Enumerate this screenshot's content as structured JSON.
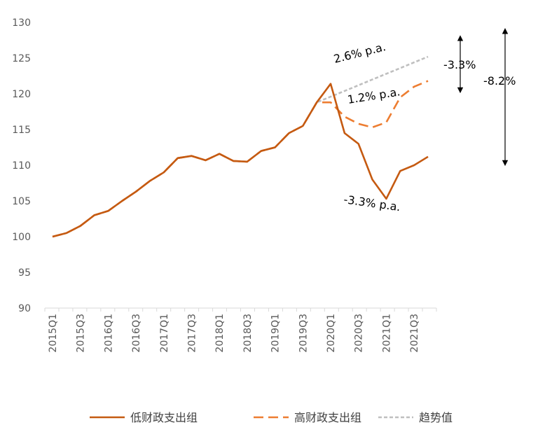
{
  "chart_data": {
    "type": "line",
    "x": [
      "2015Q1",
      "2015Q2",
      "2015Q3",
      "2015Q4",
      "2016Q1",
      "2016Q2",
      "2016Q3",
      "2016Q4",
      "2017Q1",
      "2017Q2",
      "2017Q3",
      "2017Q4",
      "2018Q1",
      "2018Q2",
      "2018Q3",
      "2018Q4",
      "2019Q1",
      "2019Q2",
      "2019Q3",
      "2019Q4",
      "2020Q1",
      "2020Q2",
      "2020Q3",
      "2020Q4",
      "2021Q1",
      "2021Q2",
      "2021Q3",
      "2021Q4"
    ],
    "xticks": [
      "2015Q1",
      "2015Q3",
      "2016Q1",
      "2016Q3",
      "2017Q1",
      "2017Q3",
      "2018Q1",
      "2018Q3",
      "2019Q1",
      "2019Q3",
      "2020Q1",
      "2020Q3",
      "2021Q1",
      "2021Q3"
    ],
    "ylim": [
      90,
      130
    ],
    "yticks": [
      90,
      95,
      100,
      105,
      110,
      115,
      120,
      125,
      130
    ],
    "grid": false,
    "legend_position": "bottom",
    "series": [
      {
        "name": "低财政支出组",
        "style": "solid",
        "color": "#C55A11",
        "values": [
          100,
          100.5,
          101.5,
          103,
          103.6,
          105,
          106.3,
          107.8,
          109,
          111,
          111.3,
          110.7,
          111.6,
          110.6,
          110.5,
          112,
          112.5,
          114.5,
          115.5,
          118.8,
          121.4,
          114.5,
          113,
          108,
          105.3,
          109.2,
          110,
          111.2
        ]
      },
      {
        "name": "高财政支出组",
        "style": "dashed",
        "color": "#ED7D31",
        "values": [
          100,
          100.5,
          101.5,
          103,
          103.6,
          105,
          106.3,
          107.8,
          109,
          111,
          111.3,
          110.7,
          111.6,
          110.6,
          110.5,
          112,
          112.5,
          114.5,
          115.5,
          118.8,
          118.8,
          116.8,
          115.8,
          115.3,
          116,
          119.5,
          121,
          121.8
        ]
      },
      {
        "name": "趋势值",
        "style": "dotted",
        "color": "#BFBFBF",
        "values": [
          100,
          100.5,
          101.5,
          103,
          103.6,
          105,
          106.3,
          107.8,
          109,
          111,
          111.3,
          110.7,
          111.6,
          110.6,
          110.5,
          112,
          112.5,
          114.5,
          115.5,
          118.8,
          119.6,
          120.4,
          121.2,
          122,
          122.8,
          123.6,
          124.4,
          125.2
        ]
      }
    ],
    "annotations": [
      {
        "text": "2.6% p.a.",
        "x": "2020Q2",
        "y": 126.5,
        "rotate": -14
      },
      {
        "text": "1.2% p.a.",
        "x": "2020Q3",
        "y": 118.8,
        "rotate": -9
      },
      {
        "text": "-3.3% p.a.",
        "x": "2020Q4",
        "y": 103.5,
        "rotate": 8
      },
      {
        "text": "-3.3%",
        "x": "2021Q4",
        "y": 124,
        "rotate": 0
      },
      {
        "text": "-8.2%",
        "x": "2021Q4",
        "y": 122,
        "rotate": 0
      }
    ],
    "gap_arrows": [
      {
        "label": "-3.3%",
        "from": 127.8,
        "to": 120.5
      },
      {
        "label": "-8.2%",
        "from": 128.8,
        "to": 110.3
      }
    ]
  }
}
